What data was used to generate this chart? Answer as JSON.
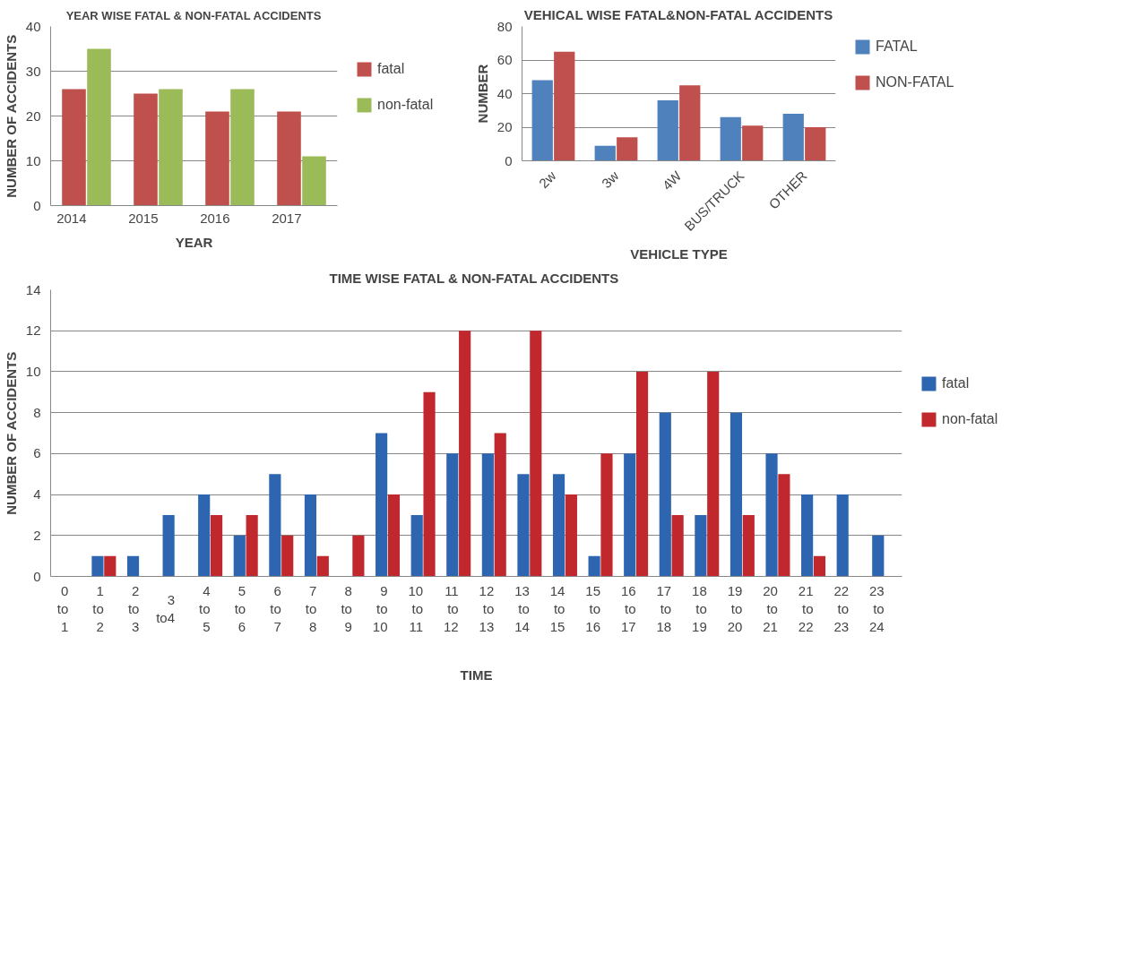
{
  "chart_data": [
    {
      "type": "bar",
      "title": "YEAR WISE FATAL & NON-FATAL ACCIDENTS",
      "xlabel": "YEAR",
      "ylabel": "NUMBER OF ACCIDENTS",
      "categories": [
        "2014",
        "2015",
        "2016",
        "2017"
      ],
      "series": [
        {
          "name": "fatal",
          "color": "#c0504d",
          "values": [
            26,
            25,
            21,
            21
          ]
        },
        {
          "name": "non-fatal",
          "color": "#9bbb59",
          "values": [
            35,
            26,
            26,
            11
          ]
        }
      ],
      "ylim": [
        0,
        40
      ],
      "yticks": [
        0,
        10,
        20,
        30,
        40
      ],
      "grid": "y",
      "legend": "right"
    },
    {
      "type": "bar",
      "title": "VEHICAL WISE FATAL&NON-FATAL ACCIDENTS",
      "xlabel": "VEHICLE TYPE",
      "ylabel": "NUMBER",
      "categories": [
        "2w",
        "3w",
        "4W",
        "BUS/TRUCK",
        "OTHER"
      ],
      "series": [
        {
          "name": "FATAL",
          "color": "#4f81bd",
          "values": [
            48,
            9,
            36,
            26,
            28
          ]
        },
        {
          "name": "NON-FATAL",
          "color": "#c0504d",
          "values": [
            65,
            14,
            45,
            21,
            20
          ]
        }
      ],
      "ylim": [
        0,
        80
      ],
      "yticks": [
        0,
        20,
        40,
        60,
        80
      ],
      "grid": "y",
      "legend": "right"
    },
    {
      "type": "bar",
      "title": "TIME WISE FATAL & NON-FATAL  ACCIDENTS",
      "xlabel": "TIME",
      "ylabel": "NUMBER OF ACCIDENTS",
      "categories": [
        "0 to 1",
        "1 to 2",
        "2 to 3",
        "3 to4",
        "4 to 5",
        "5 to 6",
        "6 to 7",
        "7 to 8",
        "8 to 9",
        "9 to 10",
        "10 to 11",
        "11 to 12",
        "12 to 13",
        "13 to 14",
        "14 to 15",
        "15 to 16",
        "16 to 17",
        "17 to 18",
        "18 to 19",
        "19 to 20",
        "20 to 21",
        "21 to 22",
        "22 to 23",
        "23 to 24"
      ],
      "series": [
        {
          "name": "fatal",
          "color": "#2e65b0",
          "values": [
            0,
            1,
            1,
            3,
            4,
            2,
            5,
            4,
            0,
            7,
            3,
            6,
            6,
            5,
            5,
            1,
            6,
            8,
            3,
            8,
            6,
            4,
            4,
            2
          ]
        },
        {
          "name": "non-fatal",
          "color": "#c0282d",
          "values": [
            0,
            1,
            0,
            0,
            3,
            3,
            2,
            1,
            2,
            4,
            9,
            12,
            7,
            12,
            4,
            6,
            10,
            3,
            10,
            3,
            5,
            1,
            0,
            0
          ]
        }
      ],
      "ylim": [
        0,
        14
      ],
      "yticks": [
        0,
        2,
        4,
        6,
        8,
        10,
        12,
        14
      ],
      "grid": "y",
      "legend": "right"
    }
  ]
}
